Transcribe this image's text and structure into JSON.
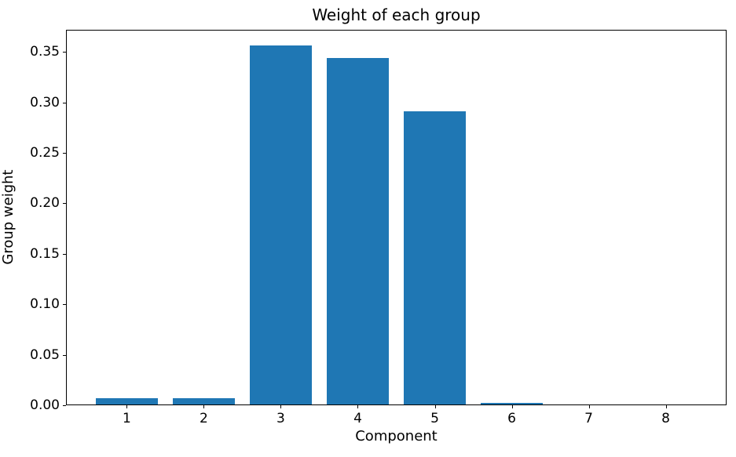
{
  "figure": {
    "background_color": "#ffffff",
    "bar_color": "#1f77b4",
    "axis_color": "#000000",
    "text_color": "#000000"
  },
  "chart_data": {
    "type": "bar",
    "title": "Weight of each group",
    "xlabel": "Component",
    "ylabel": "Group weight",
    "categories": [
      "1",
      "2",
      "3",
      "4",
      "5",
      "6",
      "7",
      "8"
    ],
    "values": [
      0.0066,
      0.0066,
      0.3557,
      0.3433,
      0.2905,
      0.0016,
      0.0,
      0.0
    ],
    "bar_width": 0.8,
    "xlim": [
      0.21,
      8.79
    ],
    "ylim": [
      0,
      0.372
    ],
    "yticks": [
      0.0,
      0.05,
      0.1,
      0.15,
      0.2,
      0.25,
      0.3,
      0.35
    ],
    "ytick_labels": [
      "0.00",
      "0.05",
      "0.10",
      "0.15",
      "0.20",
      "0.25",
      "0.30",
      "0.35"
    ],
    "grid": false,
    "legend": null
  }
}
